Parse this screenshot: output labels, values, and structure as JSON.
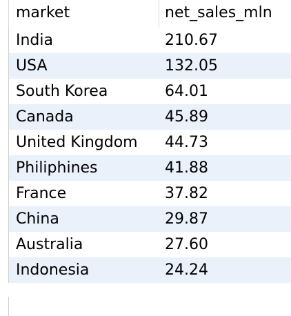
{
  "table": {
    "columns": [
      "market",
      "net_sales_mln"
    ],
    "rows": [
      {
        "market": "India",
        "net_sales_mln": "210.67"
      },
      {
        "market": "USA",
        "net_sales_mln": "132.05"
      },
      {
        "market": "South Korea",
        "net_sales_mln": "64.01"
      },
      {
        "market": "Canada",
        "net_sales_mln": "45.89"
      },
      {
        "market": "United Kingdom",
        "net_sales_mln": "44.73"
      },
      {
        "market": "Philiphines",
        "net_sales_mln": "41.88"
      },
      {
        "market": "France",
        "net_sales_mln": "37.82"
      },
      {
        "market": "China",
        "net_sales_mln": "29.87"
      },
      {
        "market": "Australia",
        "net_sales_mln": "27.60"
      },
      {
        "market": "Indonesia",
        "net_sales_mln": "24.24"
      }
    ]
  },
  "colors": {
    "stripe": "#eaf1fb",
    "background": "#ffffff",
    "gridline": "#d0d0d0"
  }
}
